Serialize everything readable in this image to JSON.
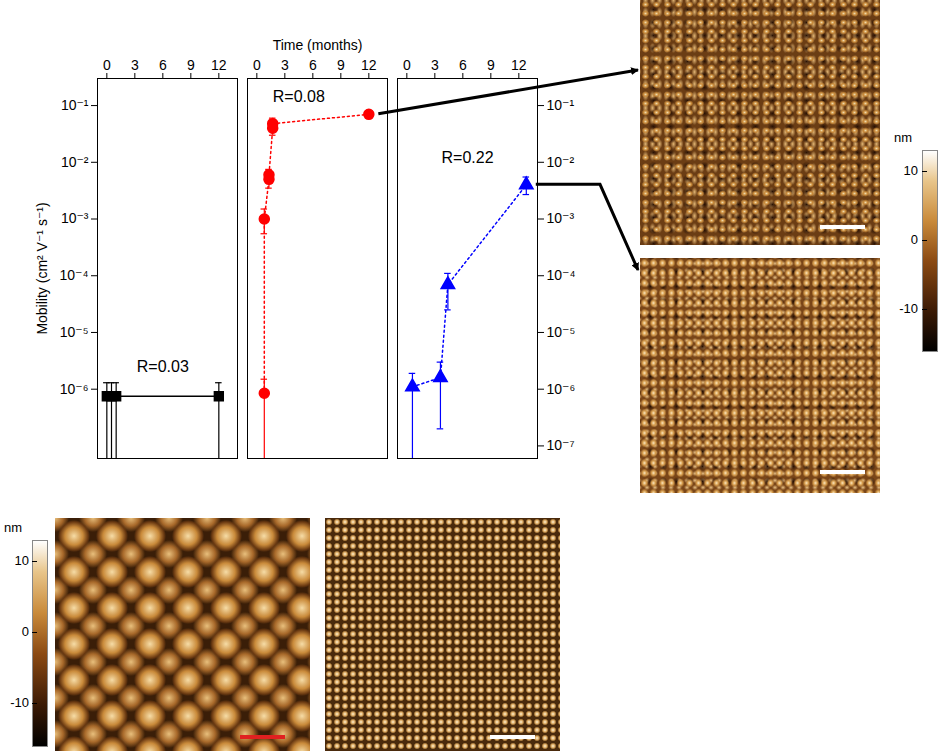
{
  "chart_data": {
    "type": "scatter",
    "x_label": "Time (months)",
    "y_label": "Mobility (cm² V⁻¹ s⁻¹)",
    "log": "y",
    "grid": false,
    "xlim": [
      -1,
      14
    ],
    "xticks": [
      0,
      3,
      6,
      9,
      12
    ],
    "ylim": [
      6e-08,
      0.3
    ],
    "yticks": [
      {
        "value": 0.1,
        "label": "10⁻¹"
      },
      {
        "value": 0.01,
        "label": "10⁻²"
      },
      {
        "value": 0.001,
        "label": "10⁻³"
      },
      {
        "value": 0.0001,
        "label": "10⁻⁴"
      },
      {
        "value": 1e-05,
        "label": "10⁻⁵"
      },
      {
        "value": 1e-06,
        "label": "10⁻⁶"
      }
    ],
    "y2lim": [
      6e-08,
      0.3
    ],
    "y2ticks": [
      {
        "value": 0.1,
        "label": "10⁻¹"
      },
      {
        "value": 0.01,
        "label": "10⁻²"
      },
      {
        "value": 0.001,
        "label": "10⁻³"
      },
      {
        "value": 0.0001,
        "label": "10⁻⁴"
      },
      {
        "value": 1e-05,
        "label": "10⁻⁵"
      },
      {
        "value": 1e-06,
        "label": "10⁻⁶"
      },
      {
        "value": 1e-07,
        "label": "10⁻⁷"
      }
    ],
    "series": [
      {
        "panel": 0,
        "color": "#000000",
        "marker": "square",
        "line_style": "solid",
        "x": [
          0,
          0.5,
          1,
          12
        ],
        "values": [
          7.5e-07,
          7.5e-07,
          7.5e-07,
          7.5e-07
        ],
        "error_low": [
          3e-08,
          3e-08,
          3e-08,
          3e-08
        ],
        "error_high": [
          1.3e-06,
          1.3e-06,
          1.3e-06,
          1.3e-06
        ]
      },
      {
        "panel": 1,
        "color": "#ff0000",
        "marker": "circle",
        "line_style": "dotted",
        "x": [
          0.8,
          0.8,
          1.3,
          1.3,
          1.7,
          1.7,
          12
        ],
        "values": [
          8.5e-07,
          0.001,
          0.005,
          0.006,
          0.04,
          0.048,
          0.07
        ],
        "error_low": [
          3e-08,
          0.00055,
          0.0035,
          0.0045,
          0.03,
          0.038,
          0.06
        ],
        "error_high": [
          1.5e-06,
          0.0015,
          0.007,
          0.0075,
          0.055,
          0.06,
          0.08
        ]
      },
      {
        "panel": 2,
        "color": "#0000ff",
        "marker": "triangle",
        "line_style": "dotted",
        "x": [
          0.6,
          3.6,
          4.4,
          12.8
        ],
        "values": [
          1.1e-06,
          1.6e-06,
          7e-05,
          0.004
        ],
        "error_low": [
          3e-08,
          2e-07,
          2.5e-05,
          0.0027
        ],
        "error_high": [
          1.9e-06,
          3e-06,
          0.00011,
          0.0055
        ]
      }
    ],
    "annotations": [
      {
        "text": "R=0.03",
        "panel": 0,
        "x": 6,
        "y": 2.5e-06
      },
      {
        "text": "R=0.08",
        "panel": 1,
        "x": 4.5,
        "y": 0.14
      },
      {
        "text": "R=0.22",
        "panel": 2,
        "x": 6.5,
        "y": 0.012
      }
    ],
    "colorbars": [
      {
        "label": "nm",
        "ticks": [
          10,
          0,
          -10
        ],
        "range": [
          -16,
          13
        ]
      },
      {
        "label": "nm",
        "ticks": [
          10,
          0,
          -10
        ],
        "range": [
          -16,
          13
        ]
      }
    ]
  }
}
